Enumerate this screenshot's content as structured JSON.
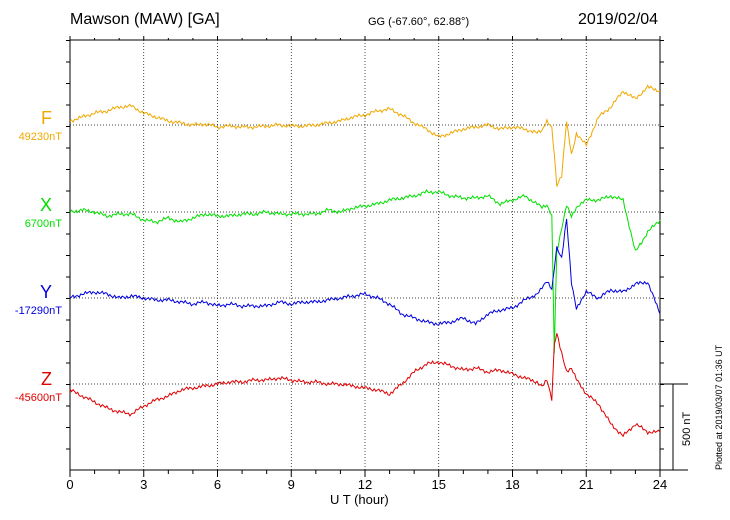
{
  "header": {
    "station": "Mawson (MAW)  [GA]",
    "coords": "GG (-67.60°,  62.88°)",
    "date": "2019/02/04"
  },
  "footer": {
    "plotted": "Plotted at 2019/03/07 01:36 UT",
    "scale_label": "500 nT"
  },
  "components": [
    {
      "letter": "F",
      "base": "49230nT",
      "color": "#f0a800"
    },
    {
      "letter": "X",
      "base": "6700nT",
      "color": "#00e000"
    },
    {
      "letter": "Y",
      "base": "-17290nT",
      "color": "#0000e0"
    },
    {
      "letter": "Z",
      "base": "-45600nT",
      "color": "#e00000"
    }
  ],
  "chart_data": {
    "type": "line",
    "title": "Mawson (MAW)  [GA]",
    "xlabel": "U T (hour)",
    "ylabel": "",
    "xlim": [
      0,
      24
    ],
    "xticks": [
      0,
      3,
      6,
      9,
      12,
      15,
      18,
      21,
      24
    ],
    "grid": true,
    "scale_bar_nT": 500,
    "x": [
      0,
      0.5,
      1,
      1.5,
      2,
      2.5,
      3,
      3.5,
      4,
      4.5,
      5,
      5.5,
      6,
      6.5,
      7,
      7.5,
      8,
      8.5,
      9,
      9.5,
      10,
      10.5,
      11,
      11.5,
      12,
      12.5,
      13,
      13.5,
      14,
      14.5,
      15,
      15.5,
      16,
      16.5,
      17,
      17.5,
      18,
      18.5,
      19,
      19.2,
      19.4,
      19.6,
      19.7,
      19.8,
      20,
      20.2,
      20.4,
      20.6,
      21,
      21.5,
      22,
      22.5,
      23,
      23.5,
      24
    ],
    "series": [
      {
        "name": "F",
        "base_nT": 49230,
        "color": "#f0a800",
        "values": [
          20,
          40,
          60,
          70,
          90,
          95,
          60,
          40,
          20,
          10,
          0,
          5,
          -10,
          -5,
          -10,
          -10,
          -5,
          0,
          -5,
          -5,
          0,
          10,
          20,
          40,
          50,
          70,
          80,
          50,
          10,
          -20,
          -60,
          -40,
          -20,
          -10,
          0,
          -20,
          -10,
          -20,
          -40,
          -30,
          20,
          -10,
          -150,
          -300,
          -250,
          20,
          -150,
          -50,
          -100,
          40,
          90,
          170,
          130,
          190,
          170
        ]
      },
      {
        "name": "X",
        "base_nT": 6700,
        "color": "#00e000",
        "values": [
          0,
          10,
          0,
          -20,
          -10,
          -10,
          -40,
          -50,
          -30,
          -50,
          -30,
          -10,
          -20,
          -20,
          -10,
          -10,
          0,
          -10,
          -10,
          -10,
          -10,
          10,
          0,
          20,
          30,
          40,
          60,
          70,
          80,
          100,
          100,
          80,
          70,
          70,
          80,
          40,
          60,
          80,
          40,
          20,
          30,
          -20,
          -700,
          -200,
          -80,
          40,
          -20,
          20,
          60,
          60,
          80,
          60,
          -200,
          -100,
          -40
        ]
      },
      {
        "name": "Y",
        "base_nT": -17290,
        "color": "#0000e0",
        "values": [
          0,
          20,
          30,
          20,
          0,
          10,
          0,
          -10,
          -10,
          -20,
          -30,
          -20,
          -40,
          -30,
          -40,
          -40,
          -40,
          -20,
          -30,
          -20,
          -20,
          -10,
          0,
          10,
          20,
          0,
          -30,
          -80,
          -100,
          -120,
          -130,
          -120,
          -100,
          -130,
          -80,
          -60,
          -50,
          -10,
          20,
          50,
          80,
          40,
          150,
          250,
          200,
          400,
          80,
          -50,
          30,
          0,
          40,
          30,
          70,
          80,
          -80
        ]
      },
      {
        "name": "Z",
        "base_nT": -45600,
        "color": "#e00000",
        "values": [
          -30,
          -60,
          -90,
          -120,
          -140,
          -150,
          -110,
          -80,
          -60,
          -30,
          -20,
          -10,
          0,
          10,
          10,
          20,
          20,
          30,
          20,
          10,
          10,
          0,
          0,
          -10,
          -20,
          -30,
          -50,
          0,
          60,
          100,
          110,
          90,
          70,
          80,
          60,
          70,
          50,
          30,
          10,
          -10,
          20,
          -80,
          200,
          250,
          150,
          60,
          80,
          30,
          -50,
          -100,
          -200,
          -260,
          -200,
          -240,
          -240
        ]
      }
    ]
  }
}
